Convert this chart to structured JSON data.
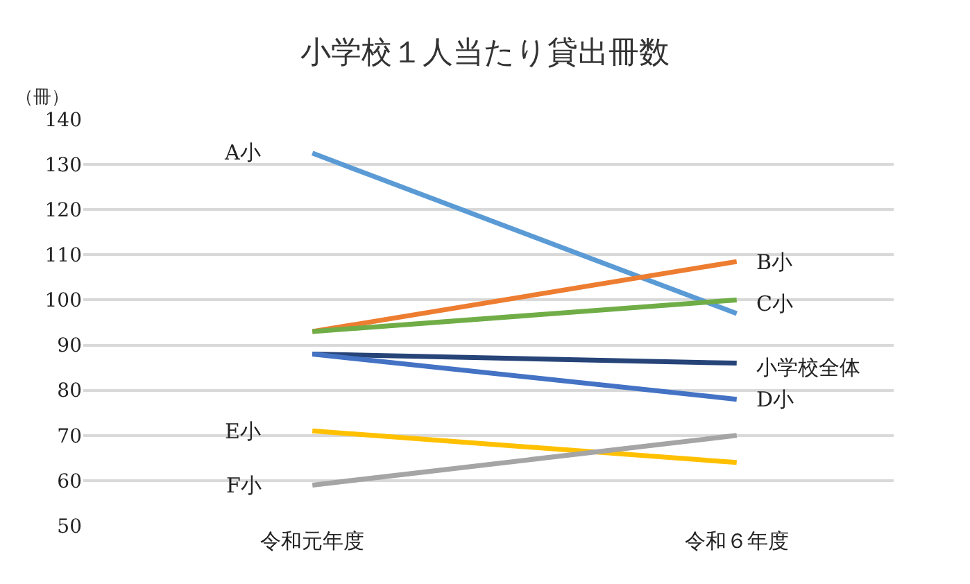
{
  "chart_data": {
    "type": "line",
    "title": "小学校１人当たり貸出冊数",
    "ylabel": "（冊）",
    "categories": [
      "令和元年度",
      "令和６年度"
    ],
    "series": [
      {
        "color": "#5b9bd5",
        "values": [
          132.5,
          97
        ]
      },
      {
        "color": "#ed7d31",
        "values": [
          93,
          108.5
        ]
      },
      {
        "color": "#70ad47",
        "values": [
          93,
          100
        ]
      },
      {
        "color": "#264478",
        "values": [
          88,
          86
        ]
      },
      {
        "color": "#4472c4",
        "values": [
          88,
          78
        ]
      },
      {
        "color": "#ffc000",
        "values": [
          71,
          64
        ]
      },
      {
        "color": "#a5a5a5",
        "values": [
          59,
          70
        ]
      }
    ],
    "annotations": [
      {
        "text": "A小",
        "x": "令和元年度",
        "y": 132.5
      },
      {
        "text": "B小",
        "x": "令和６年度",
        "y": 108.5
      },
      {
        "text": "C小",
        "x": "令和６年度",
        "y": 99
      },
      {
        "text": "小学校全体",
        "x": "令和６年度",
        "y": 85
      },
      {
        "text": "D小",
        "x": "令和６年度",
        "y": 78
      },
      {
        "text": "E小",
        "x": "令和元年度",
        "y": 71
      },
      {
        "text": "F小",
        "x": "令和元年度",
        "y": 59
      }
    ],
    "ylim": [
      50,
      140
    ],
    "yticks": [
      50,
      60,
      70,
      80,
      90,
      100,
      110,
      120,
      130,
      140
    ],
    "grid": "y",
    "legend": false,
    "marker": "none",
    "line_style": "solid"
  }
}
